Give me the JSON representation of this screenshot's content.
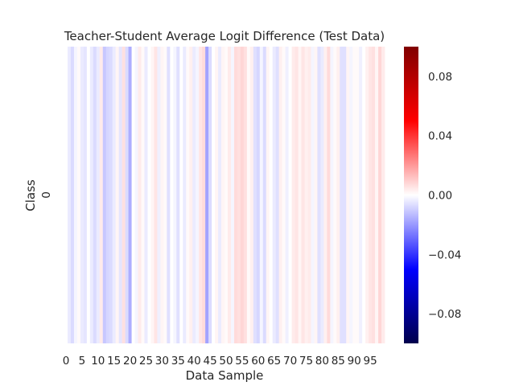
{
  "chart_data": {
    "type": "heatmap",
    "title": "Teacher-Student Average Logit Difference (Test Data)",
    "xlabel": "Data Sample",
    "ylabel": "Class",
    "y_categories": [
      "0"
    ],
    "x_tick_labels": [
      "0",
      "5",
      "10",
      "15",
      "20",
      "25",
      "30",
      "35",
      "40",
      "45",
      "50",
      "55",
      "60",
      "65",
      "70",
      "75",
      "80",
      "85",
      "90",
      "95"
    ],
    "x_tick_positions": [
      0,
      5,
      10,
      15,
      20,
      25,
      30,
      35,
      40,
      45,
      50,
      55,
      60,
      65,
      70,
      75,
      80,
      85,
      90,
      95
    ],
    "n_samples": 100,
    "values": [
      [
        0.0,
        -0.004,
        -0.007,
        -0.002,
        0.001,
        -0.004,
        -0.005,
        0.0,
        -0.004,
        -0.007,
        -0.004,
        0.004,
        -0.011,
        -0.008,
        -0.007,
        -0.004,
        0.002,
        -0.005,
        0.006,
        -0.007,
        -0.016,
        0.0,
        -0.002,
        0.004,
        0.001,
        -0.004,
        0.0,
        0.002,
        0.005,
        -0.003,
        0.002,
        0.001,
        -0.006,
        0.0,
        -0.002,
        -0.006,
        0.0,
        -0.004,
        0.001,
        0.003,
        -0.004,
        -0.002,
        0.005,
        0.007,
        -0.018,
        -0.007,
        0.0,
        0.002,
        -0.004,
        0.002,
        0.001,
        0.004,
        -0.002,
        0.007,
        0.006,
        0.008,
        0.006,
        0.001,
        0.003,
        -0.006,
        -0.008,
        -0.002,
        -0.007,
        0.002,
        0.0,
        -0.004,
        -0.006,
        0.003,
        0.001,
        -0.003,
        0.0,
        0.004,
        0.005,
        0.002,
        0.005,
        0.003,
        0.004,
        -0.002,
        0.002,
        -0.006,
        -0.004,
        0.003,
        0.007,
        -0.002,
        0.001,
        0.003,
        -0.006,
        -0.006,
        0.002,
        -0.002,
        0.001,
        0.001,
        -0.003,
        0.0,
        0.003,
        0.005,
        0.006,
        0.002,
        0.008,
        0.004
      ]
    ],
    "colorbar": {
      "vmin": -0.1,
      "vmax": 0.1,
      "colormap": "seismic",
      "tick_values": [
        0.08,
        0.04,
        0.0,
        -0.04,
        -0.08
      ],
      "tick_labels": [
        "0.08",
        "0.04",
        "0.00",
        "−0.04",
        "−0.08"
      ]
    },
    "grid": false
  }
}
